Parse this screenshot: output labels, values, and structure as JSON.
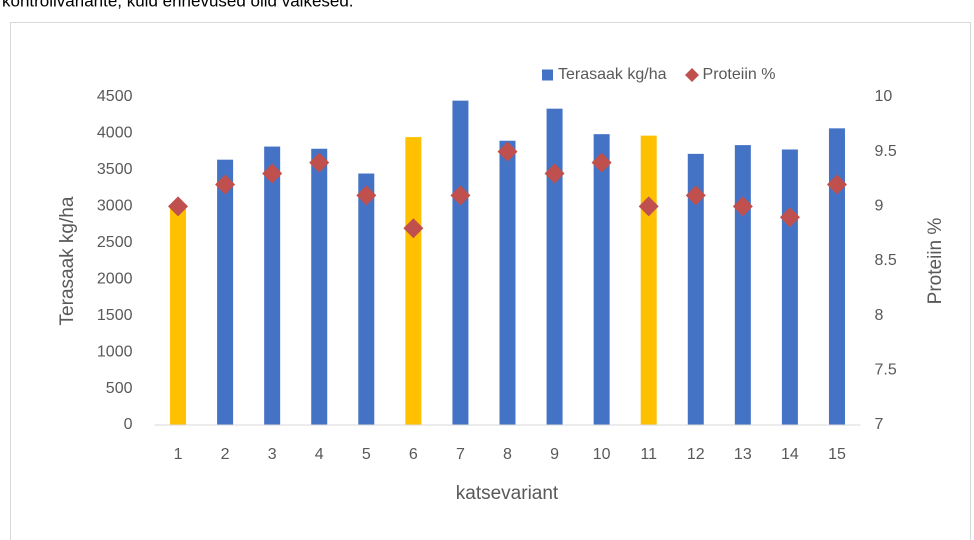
{
  "caption": "kontrollvariante, kuid erinevused olid väikesed.",
  "chart_data": {
    "type": "bar",
    "categories": [
      "1",
      "2",
      "3",
      "4",
      "5",
      "6",
      "7",
      "8",
      "9",
      "10",
      "11",
      "12",
      "13",
      "14",
      "15"
    ],
    "series": [
      {
        "name": "Terasaak kg/ha",
        "type": "bar",
        "color": "#4472c4",
        "colors": [
          "#ffc000",
          "#4472c4",
          "#4472c4",
          "#4472c4",
          "#4472c4",
          "#ffc000",
          "#4472c4",
          "#4472c4",
          "#4472c4",
          "#4472c4",
          "#ffc000",
          "#4472c4",
          "#4472c4",
          "#4472c4",
          "#4472c4"
        ],
        "values": [
          3000,
          3640,
          3820,
          3790,
          3450,
          3950,
          4450,
          3900,
          4340,
          3990,
          3970,
          3720,
          3840,
          3780,
          4070
        ]
      },
      {
        "name": "Proteiin %",
        "type": "scatter",
        "axis": "y2",
        "color": "#c0504d",
        "values": [
          9.0,
          9.2,
          9.3,
          9.4,
          9.1,
          8.8,
          9.1,
          9.5,
          9.3,
          9.4,
          9.0,
          9.1,
          9.0,
          8.9,
          9.2
        ]
      }
    ],
    "x_label": "katsevariant",
    "y_label": "Terasaak kg/ha",
    "y2_label": "Proteiin %",
    "ylim": [
      0,
      4500
    ],
    "yticks": [
      0,
      500,
      1000,
      1500,
      2000,
      2500,
      3000,
      3500,
      4000,
      4500
    ],
    "y2lim": [
      7,
      10
    ],
    "y2ticks": [
      7,
      7.5,
      8,
      8.5,
      9,
      9.5,
      10
    ],
    "grid": false,
    "legend": "top-right"
  }
}
